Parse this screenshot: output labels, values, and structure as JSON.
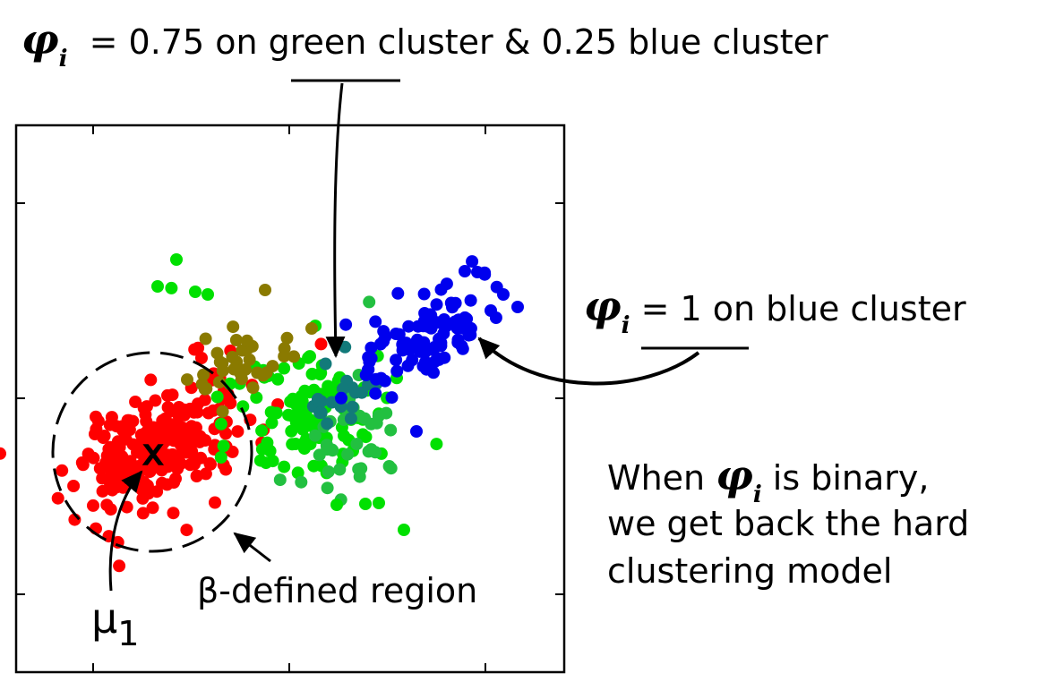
{
  "top_annotation": {
    "symbol": "φ",
    "subscript": "i",
    "text": " = 0.75 on green cluster & 0.25 blue cluster"
  },
  "right_annotation": {
    "symbol": "φ",
    "subscript": "i",
    "text": " = 1 on blue cluster"
  },
  "note": {
    "line1_before": "When ",
    "symbol": "φ",
    "subscript": "i",
    "line1_after": " is binary,",
    "line2": "we get back the hard",
    "line3": "clustering model"
  },
  "region_label": "β-defined region",
  "centroid_marker": "x",
  "centroid_label": {
    "text": "μ",
    "subscript": "1"
  },
  "colors": {
    "red": "#ff0000",
    "green": "#00e000",
    "blue": "#0000ee",
    "olive": "#8a7a00",
    "teal": "#127a7a"
  }
}
